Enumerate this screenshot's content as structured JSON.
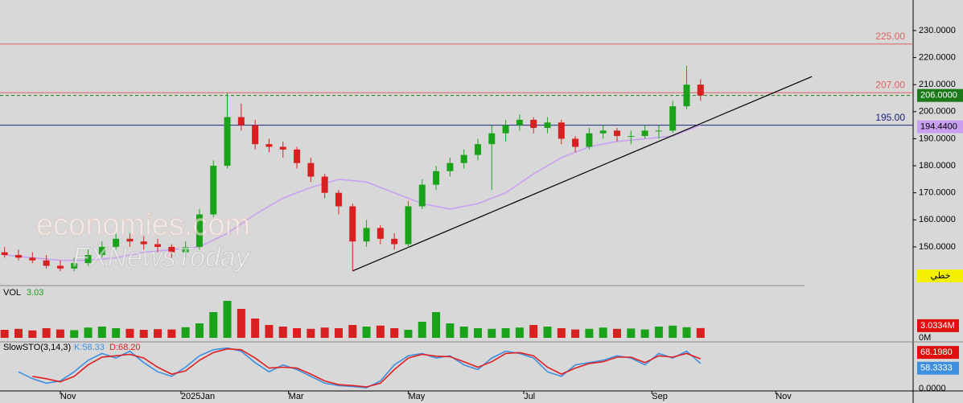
{
  "chart_data": {
    "type": "candlestick",
    "watermark": [
      "economies.com",
      "FXNewsToday"
    ],
    "xlim": [
      -4.33,
      61.27
    ],
    "xticks": [
      {
        "value": 0,
        "label": "Nov"
      },
      {
        "value": 8.67,
        "label": "2025Jan"
      },
      {
        "value": 16.4,
        "label": "Mar"
      },
      {
        "value": 25,
        "label": "May"
      },
      {
        "value": 33.3,
        "label": "Jul"
      },
      {
        "value": 42.5,
        "label": "Sep"
      },
      {
        "value": 51.4,
        "label": "Nov"
      }
    ],
    "ylim": [
      135.7,
      241.3
    ],
    "yticks": [
      {
        "value": 150,
        "label": "150.0000"
      },
      {
        "value": 160,
        "label": "160.0000"
      },
      {
        "value": 170,
        "label": "170.0000"
      },
      {
        "value": 180,
        "label": "180.0000"
      },
      {
        "value": 190,
        "label": "190.0000"
      },
      {
        "value": 200,
        "label": "200.0000"
      },
      {
        "value": 210,
        "label": "210.0000"
      },
      {
        "value": 220,
        "label": "220.0000"
      },
      {
        "value": 230,
        "label": "230.0000"
      }
    ],
    "up_color": "#1aa31a",
    "down_color": "#d92020",
    "x": [
      -4,
      -3,
      -2,
      -1,
      0,
      1,
      2,
      3,
      4,
      5,
      6,
      7,
      8,
      9,
      10,
      11,
      12,
      13,
      14,
      15,
      16,
      17,
      18,
      19,
      20,
      21,
      22,
      23,
      24,
      25,
      26,
      27,
      28,
      29,
      30,
      31,
      32,
      33,
      34,
      35,
      36,
      37,
      38,
      39,
      40,
      41,
      42,
      43,
      44,
      45,
      46
    ],
    "ohlc": [
      [
        148,
        150,
        146,
        147
      ],
      [
        147,
        149,
        145,
        146
      ],
      [
        146,
        148,
        144,
        145
      ],
      [
        145,
        147,
        142,
        143
      ],
      [
        143,
        145,
        141,
        142
      ],
      [
        142,
        146,
        141,
        144
      ],
      [
        144,
        149,
        143,
        147
      ],
      [
        147,
        152,
        146,
        150
      ],
      [
        150,
        155,
        149,
        153
      ],
      [
        153,
        155,
        150,
        152
      ],
      [
        152,
        154,
        149,
        151
      ],
      [
        151,
        153,
        148,
        150
      ],
      [
        150,
        151,
        146,
        148
      ],
      [
        148,
        152,
        146,
        150
      ],
      [
        150,
        164,
        149,
        162
      ],
      [
        162,
        182,
        161,
        180
      ],
      [
        180,
        207,
        179,
        198
      ],
      [
        198,
        203,
        193,
        195
      ],
      [
        195,
        197,
        186,
        188
      ],
      [
        188,
        190,
        185,
        187
      ],
      [
        187,
        189,
        183,
        186
      ],
      [
        186,
        187,
        179,
        181
      ],
      [
        181,
        183,
        174,
        176
      ],
      [
        176,
        177,
        168,
        170
      ],
      [
        170,
        171,
        162,
        165
      ],
      [
        165,
        166,
        141,
        152
      ],
      [
        152,
        160,
        150,
        157
      ],
      [
        157,
        158,
        151,
        153
      ],
      [
        153,
        155,
        149,
        151
      ],
      [
        151,
        167,
        150,
        165
      ],
      [
        165,
        175,
        164,
        173
      ],
      [
        173,
        180,
        171,
        178
      ],
      [
        178,
        183,
        176,
        181
      ],
      [
        181,
        186,
        179,
        184
      ],
      [
        184,
        190,
        182,
        188
      ],
      [
        188,
        195,
        171,
        192
      ],
      [
        192,
        197,
        189,
        195
      ],
      [
        195,
        199,
        193,
        197
      ],
      [
        197,
        198,
        192,
        194
      ],
      [
        194,
        198,
        192,
        196
      ],
      [
        196,
        197,
        188,
        190
      ],
      [
        190,
        191,
        185,
        187
      ],
      [
        187,
        194,
        186,
        192
      ],
      [
        192,
        195,
        190,
        193
      ],
      [
        193,
        194,
        189,
        191
      ],
      [
        191,
        193,
        188,
        191
      ],
      [
        191,
        195,
        190,
        193
      ],
      [
        193,
        195,
        190,
        193
      ],
      [
        193,
        204,
        192,
        202
      ],
      [
        202,
        217,
        201,
        210
      ],
      [
        210,
        212,
        204,
        206
      ]
    ],
    "ma": {
      "color": "#c9a0f0",
      "x": [
        -4,
        -2,
        0,
        2,
        4,
        6,
        8,
        10,
        12,
        14,
        16,
        18,
        20,
        22,
        24,
        26,
        28,
        30,
        32,
        34,
        36,
        38,
        40,
        42,
        44,
        46
      ],
      "values": [
        147,
        146,
        145,
        145,
        146,
        148,
        149,
        150,
        155,
        162,
        168,
        172,
        175,
        174,
        170,
        166,
        164,
        166,
        170,
        177,
        183,
        187,
        189,
        190,
        191,
        195
      ]
    },
    "levels": [
      {
        "value": 225,
        "label": "225.00",
        "color": "#e06060"
      },
      {
        "value": 207,
        "label": "207.00",
        "color": "#e06060"
      },
      {
        "value": 195,
        "label": "195.00",
        "color": "#1a237e"
      }
    ],
    "last_price": {
      "value": 206,
      "label": "206.0000",
      "color": "#1a7a1a"
    },
    "ma_price": {
      "value": 194.44,
      "label": "194.4400",
      "color": "#c9a0f0"
    },
    "trend_line": {
      "x": [
        21,
        54
      ],
      "y": [
        141.1,
        213
      ]
    },
    "tool_label": "خطي",
    "volume": {
      "title": "VOL",
      "last": 3.03,
      "ylim": [
        0,
        15
      ],
      "unit_ticks": [
        {
          "value": 3.0334,
          "label": "3.0334M"
        },
        {
          "value": 0,
          "label": "0M"
        }
      ],
      "values": [
        2.5,
        2.8,
        2.3,
        3,
        2.6,
        2.4,
        3.2,
        3.5,
        3,
        2.8,
        2.5,
        2.7,
        2.6,
        3.3,
        4.5,
        8,
        11.5,
        9,
        6,
        4,
        3.5,
        3,
        2.8,
        3.2,
        3,
        4,
        3.5,
        3.8,
        3,
        2.5,
        5,
        8,
        4.5,
        3.5,
        3,
        2.8,
        3,
        3.2,
        4,
        3.5,
        3,
        2.6,
        2.8,
        3.2,
        2.8,
        2.9,
        2.6,
        3.5,
        3.8,
        3.3,
        3.03
      ]
    },
    "sto": {
      "title": "SlowSTO(3,14,3)",
      "ylim": [
        0,
        100
      ],
      "zero_tick": {
        "value": 0,
        "label": "0.0000"
      },
      "k": {
        "name": {
          "value": 58.33,
          "label": "K:58.33"
        },
        "color": "#3d8fe0",
        "last": {
          "value": 58.3333,
          "label": "58.3333"
        },
        "values": [
          null,
          40,
          25,
          15,
          20,
          40,
          65,
          80,
          70,
          85,
          60,
          40,
          30,
          50,
          75,
          88,
          92,
          85,
          60,
          40,
          55,
          45,
          30,
          15,
          10,
          8,
          5,
          20,
          55,
          75,
          80,
          70,
          75,
          55,
          45,
          70,
          85,
          80,
          70,
          40,
          30,
          55,
          60,
          65,
          75,
          70,
          55,
          80,
          70,
          85,
          58.33
        ]
      },
      "d": {
        "name": {
          "value": 68.2,
          "label": "D:68.20"
        },
        "color": "#e02020",
        "last": {
          "value": 68.198,
          "label": "68.1980"
        },
        "values": [
          null,
          null,
          30,
          25,
          18,
          30,
          55,
          72,
          75,
          78,
          70,
          50,
          35,
          42,
          65,
          82,
          90,
          88,
          70,
          48,
          50,
          48,
          35,
          20,
          12,
          10,
          7,
          15,
          45,
          70,
          78,
          74,
          73,
          62,
          50,
          62,
          80,
          82,
          75,
          50,
          35,
          48,
          58,
          62,
          72,
          72,
          60,
          75,
          72,
          80,
          68.2
        ]
      }
    }
  }
}
